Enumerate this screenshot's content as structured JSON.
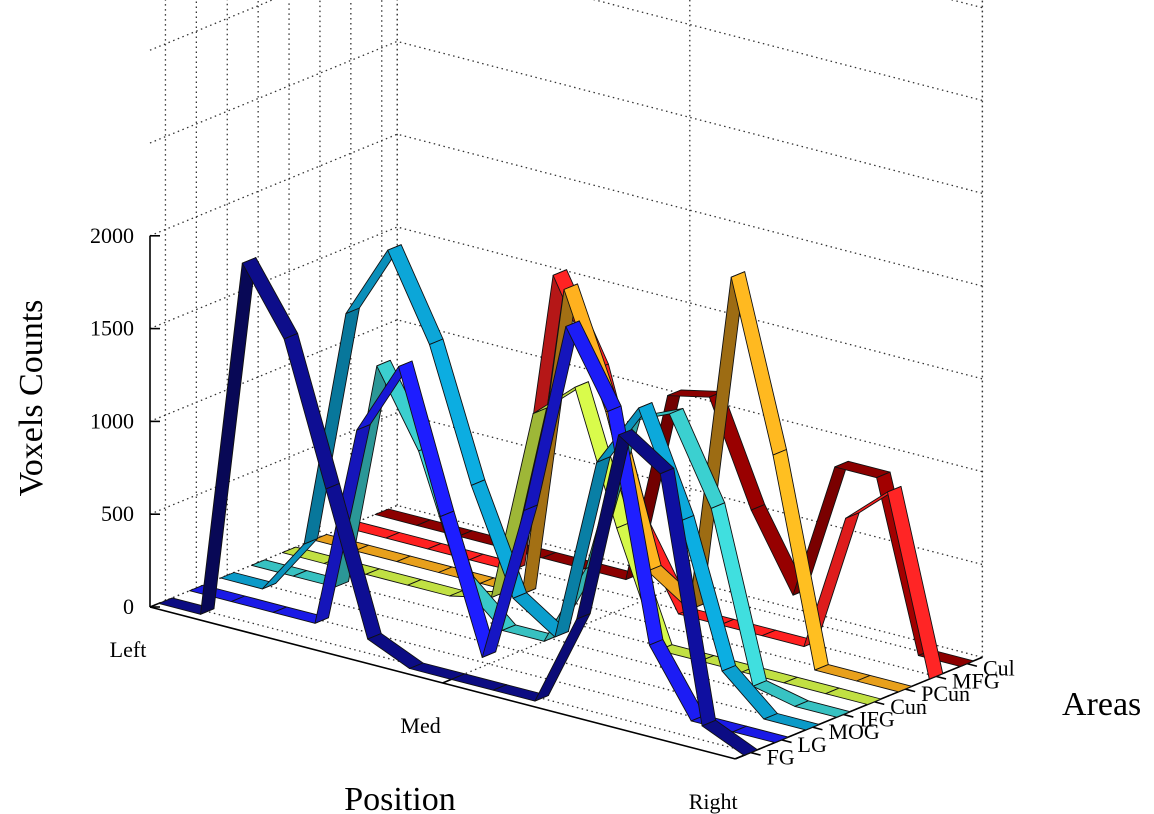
{
  "chart_data": {
    "type": "3d-ribbon",
    "zlabel": "Voxels Counts",
    "xlabel": "Position",
    "ylabel": "Areas",
    "z_ticks": [
      0,
      500,
      1000,
      1500,
      2000
    ],
    "zlim": [
      0,
      4000
    ],
    "x_ticks": [
      "Left",
      "Med",
      "Right"
    ],
    "x_tick_positions": [
      0,
      7,
      14
    ],
    "grid": true,
    "series": [
      {
        "name": "FG",
        "color": "#0c0c82",
        "values": [
          0,
          0,
          1950,
          1600,
          850,
          100,
          0,
          0,
          0,
          0,
          500,
          1550,
          1400,
          100,
          0
        ]
      },
      {
        "name": "LG",
        "color": "#1a1ae6",
        "values": [
          0,
          0,
          0,
          0,
          1100,
          1500,
          750,
          50,
          900,
          1950,
          1550,
          350,
          0,
          0,
          0
        ]
      },
      {
        "name": "MOG",
        "color": "#0b9ac8",
        "values": [
          0,
          0,
          300,
          1600,
          2000,
          1550,
          850,
          300,
          150,
          1150,
          1500,
          950,
          200,
          0,
          0
        ]
      },
      {
        "name": "IFG",
        "color": "#37c1c1",
        "values": [
          0,
          0,
          0,
          1250,
          850,
          200,
          0,
          0,
          450,
          1300,
          1400,
          950,
          50,
          0,
          0
        ]
      },
      {
        "name": "Cun",
        "color": "#c1e043",
        "values": [
          0,
          0,
          0,
          0,
          0,
          50,
          1100,
          1300,
          600,
          0,
          0,
          0,
          0,
          0,
          0
        ]
      },
      {
        "name": "PCun",
        "color": "#e8a01c",
        "values": [
          0,
          0,
          0,
          0,
          0,
          0,
          1700,
          1100,
          300,
          150,
          2000,
          1100,
          0,
          0,
          0
        ]
      },
      {
        "name": "MFG",
        "color": "#ff2020",
        "values": [
          0,
          0,
          0,
          0,
          0,
          1650,
          1200,
          400,
          0,
          0,
          0,
          0,
          750,
          950,
          0
        ]
      },
      {
        "name": "Cul",
        "color": "#8c0000",
        "values": [
          0,
          0,
          0,
          0,
          0,
          0,
          0,
          1050,
          1100,
          550,
          150,
          900,
          900,
          0,
          0
        ]
      }
    ]
  }
}
